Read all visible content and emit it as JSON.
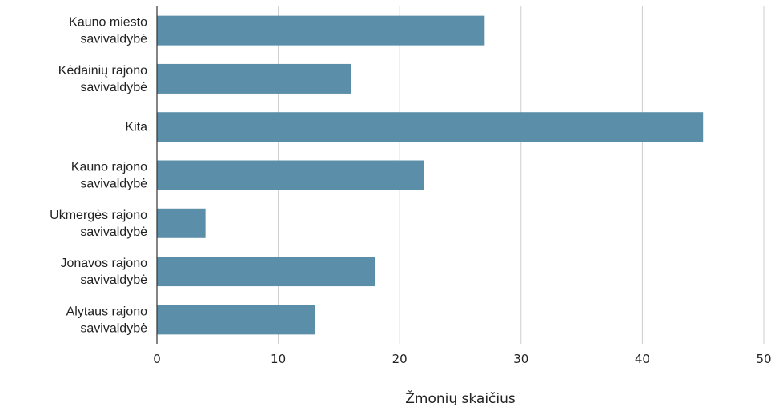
{
  "chart_data": {
    "type": "bar",
    "orientation": "horizontal",
    "categories": [
      [
        "Kauno miesto",
        "savivaldybė"
      ],
      [
        "Kėdainių rajono",
        "savivaldybė"
      ],
      [
        "Kita"
      ],
      [
        "Kauno rajono",
        "savivaldybė"
      ],
      [
        "Ukmergės rajono",
        "savivaldybė"
      ],
      [
        "Jonavos rajono",
        "savivaldybė"
      ],
      [
        "Alytaus rajono",
        "savivaldybė"
      ]
    ],
    "values": [
      27,
      16,
      45,
      22,
      4,
      18,
      13
    ],
    "xlabel": "Žmonių skaičius",
    "ylabel": "",
    "title": "",
    "xlim": [
      0,
      50
    ],
    "xticks": [
      "0",
      "10",
      "20",
      "30",
      "40",
      "50"
    ],
    "grid": "vertical",
    "legend": "none",
    "bar_color": "#5b8fa9",
    "grid_color": "#cccccc",
    "axis_color": "#333333"
  }
}
